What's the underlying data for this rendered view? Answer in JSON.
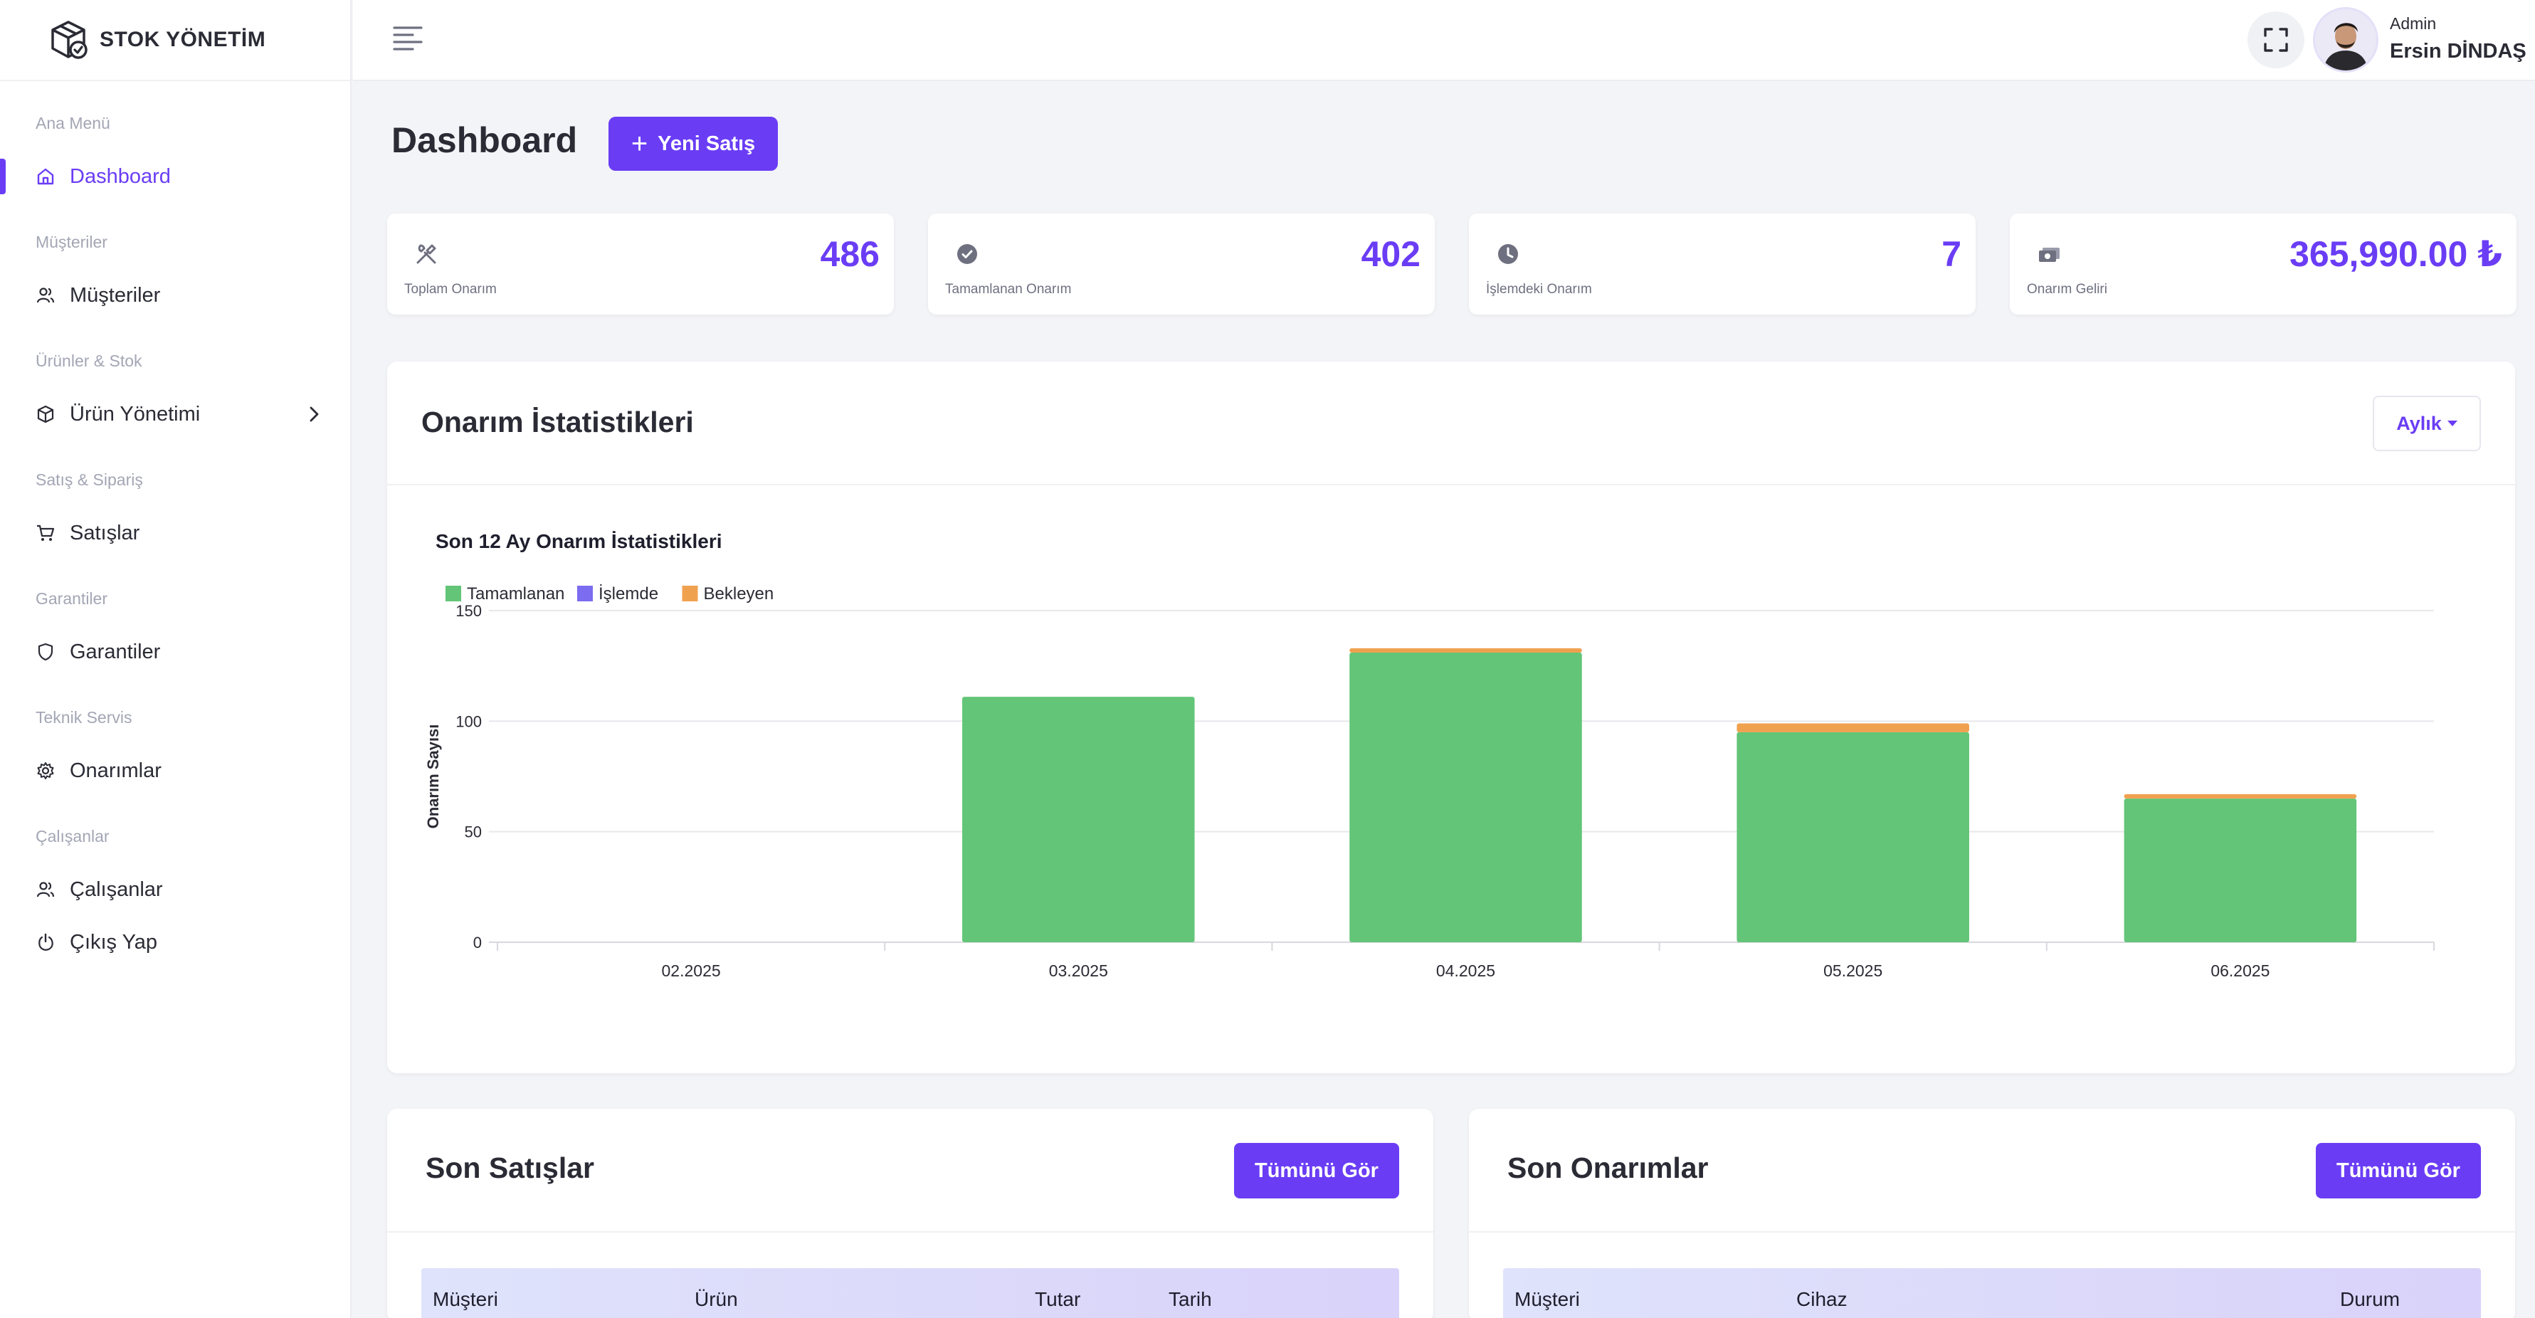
{
  "brand": {
    "name": "STOK YÖNETİM"
  },
  "sidebar": {
    "groups": [
      {
        "label": "Ana Menü",
        "items": [
          {
            "label": "Dashboard",
            "icon": "home-icon",
            "active": true
          }
        ]
      },
      {
        "label": "Müşteriler",
        "items": [
          {
            "label": "Müşteriler",
            "icon": "users-icon"
          }
        ]
      },
      {
        "label": "Ürünler & Stok",
        "items": [
          {
            "label": "Ürün Yönetimi",
            "icon": "box-icon",
            "has_submenu": true
          }
        ]
      },
      {
        "label": "Satış & Sipariş",
        "items": [
          {
            "label": "Satışlar",
            "icon": "cart-icon"
          }
        ]
      },
      {
        "label": "Garantiler",
        "items": [
          {
            "label": "Garantiler",
            "icon": "shield-icon"
          }
        ]
      },
      {
        "label": "Teknik Servis",
        "items": [
          {
            "label": "Onarımlar",
            "icon": "gear-icon"
          }
        ]
      },
      {
        "label": "Çalışanlar",
        "items": [
          {
            "label": "Çalışanlar",
            "icon": "users-icon"
          },
          {
            "label": "Çıkış Yap",
            "icon": "power-icon"
          }
        ]
      }
    ]
  },
  "user": {
    "role": "Admin",
    "name": "Ersin DİNDAŞ"
  },
  "page": {
    "title": "Dashboard",
    "new_sale_label": "Yeni Satış"
  },
  "stats": [
    {
      "value": "486",
      "label": "Toplam Onarım",
      "icon": "tools-icon"
    },
    {
      "value": "402",
      "label": "Tamamlanan Onarım",
      "icon": "check-circle-icon"
    },
    {
      "value": "7",
      "label": "İşlemdeki Onarım",
      "icon": "clock-icon"
    },
    {
      "value": "365,990.00 ₺",
      "label": "Onarım Geliri",
      "icon": "money-icon"
    }
  ],
  "repair_stats": {
    "title": "Onarım İstatistikleri",
    "period_label": "Aylık"
  },
  "chart_data": {
    "type": "bar",
    "stacked": true,
    "title": "Son 12 Ay Onarım İstatistikleri",
    "ylabel": "Onarım Sayısı",
    "xlabel": "",
    "ylim": [
      0,
      150
    ],
    "yticks": [
      0,
      50,
      100,
      150
    ],
    "grid": true,
    "legend": "top-left",
    "categories": [
      "02.2025",
      "03.2025",
      "04.2025",
      "05.2025",
      "06.2025"
    ],
    "series": [
      {
        "name": "Tamamlanan",
        "color": "#63c577",
        "values": [
          0,
          111,
          131,
          95,
          65
        ]
      },
      {
        "name": "İşlemde",
        "color": "#7b6cf0",
        "values": [
          0,
          0,
          0,
          0,
          0
        ]
      },
      {
        "name": "Bekleyen",
        "color": "#f0a150",
        "values": [
          0,
          0,
          2,
          4,
          2
        ]
      }
    ]
  },
  "recent_sales": {
    "title": "Son Satışlar",
    "button_label": "Tümünü Gör",
    "columns": [
      "Müşteri",
      "Ürün",
      "Tutar",
      "Tarih"
    ]
  },
  "recent_repairs": {
    "title": "Son Onarımlar",
    "button_label": "Tümünü Gör",
    "columns": [
      "Müşteri",
      "Cihaz",
      "Durum"
    ]
  },
  "colors": {
    "accent": "#6a3df5",
    "background": "#f3f4f7"
  }
}
